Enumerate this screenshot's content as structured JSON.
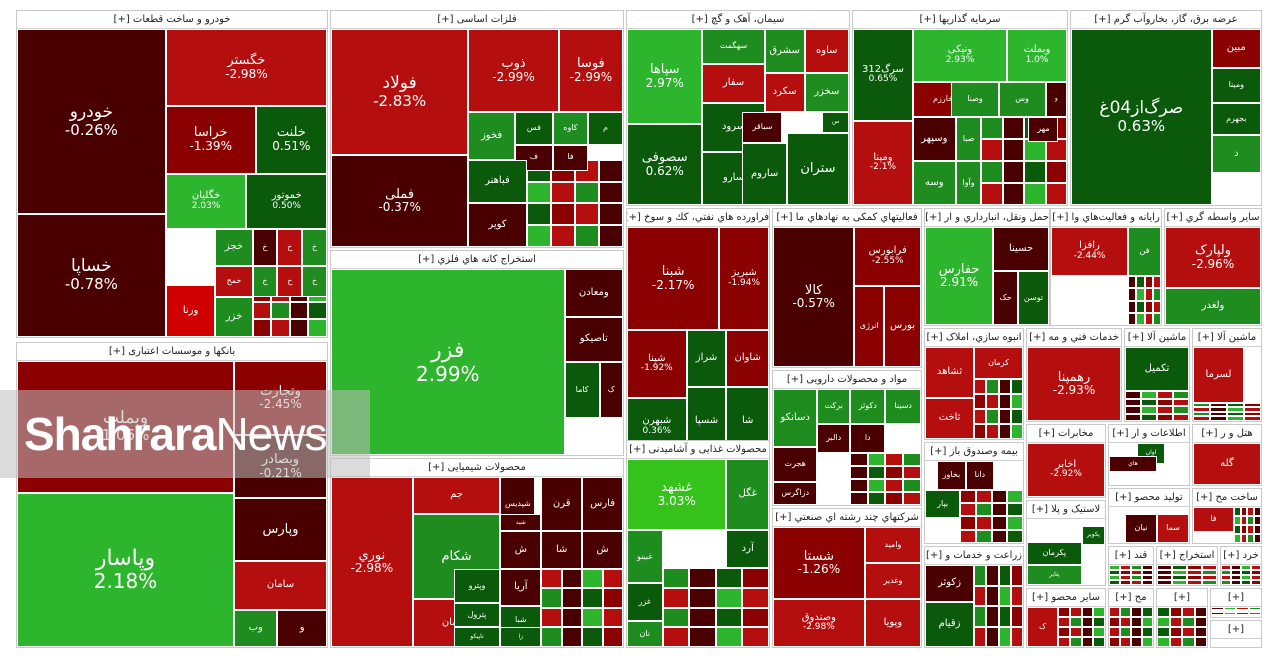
{
  "colors": {
    "dark_red": "#4a0000",
    "red": "#8b0000",
    "bright_red": "#b40e0e",
    "vivid_red": "#d10000",
    "dark_green": "#0b5a0b",
    "green": "#1e8c1e",
    "bright_green": "#2db52d",
    "lime": "#35c21a"
  },
  "watermark": {
    "bold": "Shahrara",
    "light": "News"
  },
  "sectors": [
    {
      "title": "خودرو و ساخت قطعات [+]",
      "tiles": [
        {
          "name": "خودرو",
          "pct": "-0.26%",
          "c": "dark_red"
        },
        {
          "name": "خساپا",
          "pct": "-0.78%",
          "c": "dark_red"
        },
        {
          "name": "خگستر",
          "pct": "-2.98%",
          "c": "bright_red"
        },
        {
          "name": "خراسا",
          "pct": "-1.39%",
          "c": "red"
        },
        {
          "name": "خلنت",
          "pct": "0.51%",
          "c": "dark_green"
        },
        {
          "name": "خگلیان",
          "pct": "2.03%",
          "c": "bright_green"
        },
        {
          "name": "خموتور",
          "pct": "0.50%",
          "c": "dark_green"
        },
        {
          "name": "خجز",
          "pct": "",
          "c": "green"
        },
        {
          "name": "خ",
          "pct": "",
          "c": "dark_red"
        },
        {
          "name": "خ",
          "pct": "",
          "c": "bright_red"
        },
        {
          "name": "خ",
          "pct": "",
          "c": "green"
        },
        {
          "name": "خمح",
          "pct": "",
          "c": "bright_red"
        },
        {
          "name": "خ",
          "pct": "",
          "c": "green"
        },
        {
          "name": "خ",
          "pct": "",
          "c": "bright_red"
        },
        {
          "name": "خ",
          "pct": "",
          "c": "green"
        },
        {
          "name": "ورنا",
          "pct": "",
          "c": "vivid_red"
        },
        {
          "name": "خزر",
          "pct": "",
          "c": "green"
        }
      ]
    },
    {
      "title": "فلزات اساسی [+]",
      "tiles": [
        {
          "name": "فولاد",
          "pct": "-2.83%",
          "c": "bright_red"
        },
        {
          "name": "فملی",
          "pct": "-0.37%",
          "c": "dark_red"
        },
        {
          "name": "ذوب",
          "pct": "-2.99%",
          "c": "bright_red"
        },
        {
          "name": "فوسا",
          "pct": "-2.99%",
          "c": "bright_red"
        },
        {
          "name": "فخوز",
          "pct": "",
          "c": "green"
        },
        {
          "name": "فس",
          "pct": "",
          "c": "dark_green"
        },
        {
          "name": "کاوه",
          "pct": "",
          "c": "green"
        },
        {
          "name": "م",
          "pct": "",
          "c": "dark_green"
        },
        {
          "name": "ف",
          "pct": "",
          "c": "dark_red"
        },
        {
          "name": "فا",
          "pct": "",
          "c": "dark_red"
        },
        {
          "name": "فباهنر",
          "pct": "",
          "c": "dark_green"
        },
        {
          "name": "کویر",
          "pct": "",
          "c": "dark_red"
        }
      ]
    },
    {
      "title": "سیمان، آهک و گچ [+]",
      "tiles": [
        {
          "name": "سهگمت",
          "pct": "",
          "c": "green"
        },
        {
          "name": "ساوه",
          "pct": "",
          "c": "bright_red"
        },
        {
          "name": "سشرق",
          "pct": "",
          "c": "green"
        },
        {
          "name": "سپاها",
          "pct": "2.97%",
          "c": "bright_green"
        },
        {
          "name": "سفار",
          "pct": "",
          "c": "bright_red"
        },
        {
          "name": "سکرد",
          "pct": "",
          "c": "bright_red"
        },
        {
          "name": "سخزر",
          "pct": "",
          "c": "green"
        },
        {
          "name": "س",
          "pct": "",
          "c": "dark_green"
        },
        {
          "name": "سصوفی",
          "pct": "0.62%",
          "c": "dark_green"
        },
        {
          "name": "سرود",
          "pct": "",
          "c": "dark_green"
        },
        {
          "name": "سباقر",
          "pct": "",
          "c": "dark_red"
        },
        {
          "name": "سارو",
          "pct": "",
          "c": "dark_green"
        },
        {
          "name": "ساروم",
          "pct": "",
          "c": "dark_green"
        },
        {
          "name": "ستران",
          "pct": "",
          "c": "dark_green"
        }
      ]
    },
    {
      "title": "سرمایه گذاریها [+]",
      "tiles": [
        {
          "name": "سرگ312",
          "pct": "0.65%",
          "c": "dark_green"
        },
        {
          "name": "ونیکی",
          "pct": "2.93%",
          "c": "bright_green"
        },
        {
          "name": "وبملت",
          "pct": "1.0%",
          "c": "bright_green"
        },
        {
          "name": "وخارزم",
          "pct": "",
          "c": "red"
        },
        {
          "name": "وصنا",
          "pct": "",
          "c": "green"
        },
        {
          "name": "وس",
          "pct": "",
          "c": "green"
        },
        {
          "name": "و",
          "pct": "",
          "c": "dark_red"
        },
        {
          "name": "ومپنا",
          "pct": "-2.1%",
          "c": "bright_red"
        },
        {
          "name": "وسپهر",
          "pct": "",
          "c": "dark_red"
        },
        {
          "name": "صبا",
          "pct": "",
          "c": "green"
        },
        {
          "name": "مهر",
          "pct": "",
          "c": "dark_red"
        },
        {
          "name": "وسه",
          "pct": "",
          "c": "green"
        },
        {
          "name": "وآوا",
          "pct": "",
          "c": "green"
        }
      ]
    },
    {
      "title": "عرضه برق، گاز، بخاروآب گرم [+]",
      "tiles": [
        {
          "name": "صرگ‌از04غ",
          "pct": "0.63%",
          "c": "dark_green"
        },
        {
          "name": "مبین",
          "pct": "",
          "c": "red"
        },
        {
          "name": "ومینا",
          "pct": "",
          "c": "dark_green"
        },
        {
          "name": "بجهرم",
          "pct": "",
          "c": "dark_green"
        },
        {
          "name": "د",
          "pct": "",
          "c": "green"
        }
      ]
    },
    {
      "title": "بانکها و موسسات اعتباری [+]",
      "tiles": [
        {
          "name": "وبملت",
          "pct": "1.06%",
          "c": "red"
        },
        {
          "name": "وتجارت",
          "pct": "-2.45%",
          "c": "red"
        },
        {
          "name": "وبصادر",
          "pct": "-0.21%",
          "c": "dark_red"
        },
        {
          "name": "وپاسار",
          "pct": "2.18%",
          "c": "bright_green"
        },
        {
          "name": "وپارس",
          "pct": "",
          "c": "dark_red"
        },
        {
          "name": "سامان",
          "pct": "",
          "c": "bright_red"
        },
        {
          "name": "وب",
          "pct": "",
          "c": "green"
        },
        {
          "name": "و",
          "pct": "",
          "c": "dark_red"
        }
      ]
    },
    {
      "title": "استخراج کانه هاي فلزي [+]",
      "tiles": [
        {
          "name": "فزر",
          "pct": "2.99%",
          "c": "bright_green"
        },
        {
          "name": "ومعادن",
          "pct": "",
          "c": "dark_red"
        },
        {
          "name": "تاصیکو",
          "pct": "",
          "c": "dark_red"
        },
        {
          "name": "کاما",
          "pct": "",
          "c": "dark_green"
        },
        {
          "name": "ک",
          "pct": "",
          "c": "dark_red"
        }
      ]
    },
    {
      "title": "محصولات شیمیایی [+]",
      "tiles": [
        {
          "name": "نوري",
          "pct": "-2.98%",
          "c": "bright_red"
        },
        {
          "name": "جم",
          "pct": "",
          "c": "bright_red"
        },
        {
          "name": "شپدیس",
          "pct": "",
          "c": "dark_red"
        },
        {
          "name": "شید",
          "pct": "",
          "c": "dark_red"
        },
        {
          "name": "قرن",
          "pct": "",
          "c": "dark_red"
        },
        {
          "name": "فارس",
          "pct": "",
          "c": "dark_red"
        },
        {
          "name": "شکام",
          "pct": "",
          "c": "green"
        },
        {
          "name": "ش",
          "pct": "",
          "c": "dark_red"
        },
        {
          "name": "شا",
          "pct": "",
          "c": "dark_red"
        },
        {
          "name": "ش",
          "pct": "",
          "c": "dark_red"
        },
        {
          "name": "آریا",
          "pct": "",
          "c": "dark_red"
        },
        {
          "name": "پارسان",
          "pct": "",
          "c": "bright_red"
        },
        {
          "name": "وپترو",
          "pct": "",
          "c": "dark_green"
        },
        {
          "name": "پترول",
          "pct": "",
          "c": "dark_green"
        },
        {
          "name": "تاپیکو",
          "pct": "",
          "c": "dark_green"
        },
        {
          "name": "شبا",
          "pct": "",
          "c": "dark_green"
        },
        {
          "name": "زا",
          "pct": "",
          "c": "dark_green"
        }
      ]
    },
    {
      "title": "فراورده هاي نفتي، كك و سوخ [+]",
      "tiles": [
        {
          "name": "شبنا",
          "pct": "-2.17%",
          "c": "red"
        },
        {
          "name": "شبریز",
          "pct": "-1.94%",
          "c": "red"
        },
        {
          "name": "شپنا",
          "pct": "-1.92%",
          "c": "red"
        },
        {
          "name": "شراز",
          "pct": "",
          "c": "dark_green"
        },
        {
          "name": "شسپا",
          "pct": "",
          "c": "dark_green"
        },
        {
          "name": "شاوان",
          "pct": "",
          "c": "red"
        },
        {
          "name": "شبهرن",
          "pct": "0.36%",
          "c": "dark_green"
        },
        {
          "name": "شا",
          "pct": "",
          "c": "dark_green"
        }
      ]
    },
    {
      "title": "فعالیتهاي کمکی به نهادهاي ما [+]",
      "tiles": [
        {
          "name": "کالا",
          "pct": "-0.57%",
          "c": "dark_red"
        },
        {
          "name": "فرابورس",
          "pct": "-2.55%",
          "c": "red"
        },
        {
          "name": "انرژی",
          "pct": "",
          "c": "red"
        },
        {
          "name": "بورس",
          "pct": "",
          "c": "red"
        }
      ]
    },
    {
      "title": "مواد و محصولات دارویی [+]",
      "tiles": [
        {
          "name": "دسانکو",
          "pct": "",
          "c": "green"
        },
        {
          "name": "برکت",
          "pct": "",
          "c": "green"
        },
        {
          "name": "دکوثر",
          "pct": "",
          "c": "green"
        },
        {
          "name": "دسینا",
          "pct": "",
          "c": "green"
        },
        {
          "name": "دالبر",
          "pct": "",
          "c": "dark_red"
        },
        {
          "name": "دا",
          "pct": "",
          "c": "dark_red"
        },
        {
          "name": "هجرت",
          "pct": "",
          "c": "dark_red"
        },
        {
          "name": "دزاگرس",
          "pct": "",
          "c": "dark_red"
        }
      ]
    },
    {
      "title": "محصولات غذایی و آشامیدنی [+]",
      "tiles": [
        {
          "name": "غشهد",
          "pct": "3.03%",
          "c": "lime"
        },
        {
          "name": "غگل",
          "pct": "",
          "c": "green"
        },
        {
          "name": "آرد",
          "pct": "",
          "c": "dark_green"
        },
        {
          "name": "غبینو",
          "pct": "",
          "c": "green"
        },
        {
          "name": "غزر",
          "pct": "",
          "c": "dark_green"
        },
        {
          "name": "نان",
          "pct": "",
          "c": "green"
        }
      ]
    },
    {
      "title": "شرکتهاي چند رشته اي صنعتي [+]",
      "tiles": [
        {
          "name": "شستا",
          "pct": "-1.26%",
          "c": "red"
        },
        {
          "name": "وامید",
          "pct": "",
          "c": "bright_red"
        },
        {
          "name": "وغدیر",
          "pct": "",
          "c": "bright_red"
        },
        {
          "name": "وصندوق",
          "pct": "-2.98%",
          "c": "bright_red"
        },
        {
          "name": "وپویا",
          "pct": "",
          "c": "bright_red"
        }
      ]
    },
    {
      "title": "حمل ونقل، انبارداري و ار [+]",
      "tiles": [
        {
          "name": "حفارس",
          "pct": "2.91%",
          "c": "bright_green"
        },
        {
          "name": "حسینا",
          "pct": "",
          "c": "dark_red"
        },
        {
          "name": "حک",
          "pct": "",
          "c": "dark_red"
        },
        {
          "name": "توسن",
          "pct": "",
          "c": "dark_green"
        }
      ]
    },
    {
      "title": "رایانه و فعالیت‌هاي وا [+]",
      "tiles": [
        {
          "name": "رافزا",
          "pct": "-2.44%",
          "c": "bright_red"
        },
        {
          "name": "فن",
          "pct": "",
          "c": "green"
        }
      ]
    },
    {
      "title": "سایر واسطه گري [+]",
      "tiles": [
        {
          "name": "ولپارک",
          "pct": "-2.96%",
          "c": "bright_red"
        },
        {
          "name": "ولغدر",
          "pct": "",
          "c": "green"
        }
      ]
    },
    {
      "title": "انبوه سازي، املاک [+]",
      "tiles": [
        {
          "name": "کرمان",
          "pct": "",
          "c": "bright_red"
        },
        {
          "name": "ثشاهد",
          "pct": "",
          "c": "bright_red"
        },
        {
          "name": "ثاخت",
          "pct": "",
          "c": "bright_red"
        }
      ]
    },
    {
      "title": "خدمات فني و مه [+]",
      "tiles": [
        {
          "name": "رهمپنا",
          "pct": "-2.93%",
          "c": "bright_red"
        }
      ]
    },
    {
      "title": "ماشین آلا [+]",
      "tiles": [
        {
          "name": "تکمیل",
          "pct": "",
          "c": "dark_green"
        }
      ]
    },
    {
      "title": "ماشین آلا [+]",
      "tiles": [
        {
          "name": "لسرما",
          "pct": "",
          "c": "bright_red"
        }
      ]
    },
    {
      "title": "بیمه وصندوق باز [+]",
      "tiles": [
        {
          "name": "دانا",
          "pct": "",
          "c": "dark_red"
        },
        {
          "name": "بخاور",
          "pct": "",
          "c": "dark_red"
        },
        {
          "name": "بپار",
          "pct": "",
          "c": "dark_green"
        }
      ]
    },
    {
      "title": "مخابرات [+]",
      "tiles": [
        {
          "name": "اخابر",
          "pct": "-2.92%",
          "c": "bright_red"
        }
      ]
    },
    {
      "title": "اطلاعات و ار [+]",
      "tiles": [
        {
          "name": "اوان",
          "pct": "",
          "c": "dark_green"
        },
        {
          "name": "هاي",
          "pct": "",
          "c": "dark_red"
        }
      ]
    },
    {
      "title": "هتل و ر [+]",
      "tiles": [
        {
          "name": "گله",
          "pct": "",
          "c": "bright_red"
        }
      ]
    },
    {
      "title": "تولید محصو [+]",
      "tiles": [
        {
          "name": "نیان",
          "pct": "",
          "c": "dark_red"
        },
        {
          "name": "سما",
          "pct": "",
          "c": "bright_red"
        }
      ]
    },
    {
      "title": "ساخت مح [+]",
      "tiles": [
        {
          "name": "فا",
          "pct": "",
          "c": "bright_red"
        }
      ]
    },
    {
      "title": "لاستیک و پلا [+]",
      "tiles": [
        {
          "name": "پکرمان",
          "pct": "",
          "c": "dark_green"
        },
        {
          "name": "پتایر",
          "pct": "",
          "c": "green"
        },
        {
          "name": "پکویر",
          "pct": "",
          "c": "dark_green"
        }
      ]
    },
    {
      "title": "زراعت و خدمات و [+]",
      "tiles": [
        {
          "name": "زکوثر",
          "pct": "",
          "c": "dark_red"
        },
        {
          "name": "زقیام",
          "pct": "",
          "c": "dark_green"
        }
      ]
    },
    {
      "title": "سایر محصو [+]",
      "tiles": [
        {
          "name": "ک",
          "pct": "",
          "c": "bright_red"
        }
      ]
    },
    {
      "title": "قند [+]",
      "tiles": []
    },
    {
      "title": "استخراج [+]",
      "tiles": []
    },
    {
      "title": "خرد [+]",
      "tiles": []
    },
    {
      "title": "مح [+]",
      "tiles": []
    },
    {
      "title": "[+]",
      "tiles": []
    },
    {
      "title": "[+]",
      "tiles": []
    },
    {
      "title": "[+]",
      "tiles": []
    },
    {
      "title": "[+]",
      "tiles": []
    }
  ]
}
